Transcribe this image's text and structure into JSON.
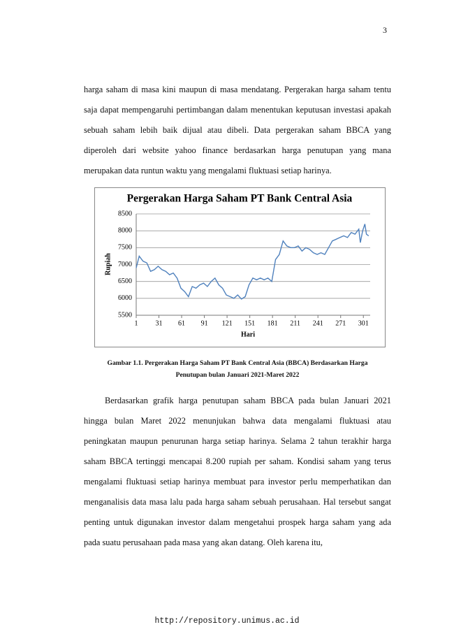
{
  "page_number": "3",
  "paragraphs": [
    "harga saham di masa kini maupun di masa mendatang. Pergerakan harga saham tentu saja dapat mempengaruhi pertimbangan dalam menentukan keputusan investasi apakah sebuah saham lebih baik dijual atau dibeli. Data pergerakan saham BBCA yang diperoleh dari website yahoo finance berdasarkan harga penutupan yang mana merupakan data runtun waktu yang mengalami fluktuasi setiap harinya.",
    "Berdasarkan grafik harga penutupan saham BBCA pada bulan Januari 2021 hingga bulan Maret 2022 menunjukan bahwa data mengalami fluktuasi atau peningkatan maupun penurunan harga setiap harinya. Selama 2 tahun terakhir harga saham BBCA tertinggi mencapai 8.200 rupiah per saham. Kondisi saham yang terus mengalami fluktuasi setiap harinya membuat para investor perlu memperhatikan dan menganalisis data masa lalu pada harga saham sebuah perusahaan. Hal tersebut sangat penting untuk digunakan investor dalam mengetahui prospek harga saham yang ada pada suatu perusahaan pada masa yang akan datang. Oleh karena itu,"
  ],
  "chart_data": {
    "type": "line",
    "title": "Pergerakan Harga Saham PT Bank Central Asia",
    "x_label": "Hari",
    "y_label": "Rupiah",
    "color": "#4f81bd",
    "grid": true,
    "x": [
      1,
      5,
      10,
      15,
      20,
      25,
      30,
      35,
      40,
      45,
      50,
      55,
      60,
      65,
      70,
      75,
      80,
      85,
      90,
      95,
      100,
      105,
      110,
      115,
      120,
      125,
      130,
      135,
      140,
      145,
      150,
      155,
      160,
      165,
      170,
      175,
      180,
      185,
      190,
      195,
      200,
      205,
      210,
      215,
      220,
      225,
      230,
      235,
      240,
      245,
      250,
      255,
      260,
      265,
      270,
      275,
      280,
      285,
      290,
      295,
      297,
      300,
      303,
      305,
      308
    ],
    "values": [
      6900,
      7250,
      7100,
      7050,
      6800,
      6850,
      6950,
      6850,
      6800,
      6700,
      6750,
      6600,
      6300,
      6200,
      6050,
      6350,
      6300,
      6400,
      6450,
      6350,
      6500,
      6600,
      6400,
      6300,
      6100,
      6050,
      6000,
      6100,
      5980,
      6050,
      6400,
      6600,
      6550,
      6600,
      6550,
      6600,
      6500,
      7150,
      7300,
      7700,
      7550,
      7500,
      7500,
      7550,
      7400,
      7500,
      7450,
      7350,
      7300,
      7350,
      7300,
      7500,
      7700,
      7750,
      7800,
      7850,
      7800,
      7950,
      7900,
      8050,
      7650,
      8000,
      8200,
      7900,
      7850
    ],
    "xlim": [
      1,
      310
    ],
    "xticks": [
      1,
      31,
      61,
      91,
      121,
      151,
      181,
      211,
      241,
      271,
      301
    ],
    "ylim": [
      5500,
      8500
    ],
    "yticks": [
      5500,
      6000,
      6500,
      7000,
      7500,
      8000,
      8500
    ]
  },
  "caption": [
    "Gambar 1.1. Pergerakan Harga Saham PT Bank Central Asia (BBCA) Berdasarkan  Harga",
    "Penutupan bulan Januari 2021-Maret 2022"
  ],
  "footer": "http://repository.unimus.ac.id"
}
